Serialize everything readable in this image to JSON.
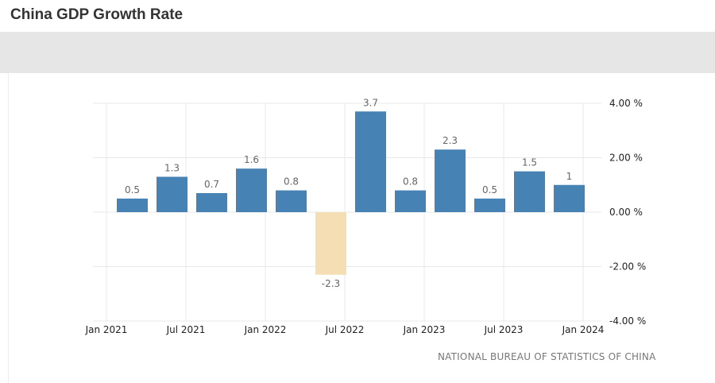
{
  "page": {
    "title": "China GDP Growth Rate"
  },
  "chart_data": {
    "type": "bar",
    "title": "China GDP Growth Rate",
    "categories": [
      "Q1 2021",
      "Q2 2021",
      "Q3 2021",
      "Q4 2021",
      "Q1 2022",
      "Q2 2022",
      "Q3 2022",
      "Q4 2022",
      "Q1 2023",
      "Q2 2023",
      "Q3 2023",
      "Q4 2023"
    ],
    "values": [
      0.5,
      1.3,
      0.7,
      1.6,
      0.8,
      -2.3,
      3.7,
      0.8,
      2.3,
      0.5,
      1.5,
      1
    ],
    "value_labels": [
      "0.5",
      "1.3",
      "0.7",
      "1.6",
      "0.8",
      "-2.3",
      "3.7",
      "0.8",
      "2.3",
      "0.5",
      "1.5",
      "1"
    ],
    "x_tick_labels": [
      "Jan 2021",
      "Jul 2021",
      "Jan 2022",
      "Jul 2022",
      "Jan 2023",
      "Jul 2023",
      "Jan 2024"
    ],
    "y_ticks": [
      4,
      2,
      0,
      -2,
      -4
    ],
    "y_tick_labels": [
      "4.00 %",
      "2.00 %",
      "0.00 %",
      "-2.00 %",
      "-4.00 %"
    ],
    "ylim": [
      -4,
      4
    ],
    "y_axis_side": "right",
    "grid": true,
    "colors": {
      "positive": "#4682b4",
      "negative": "#f5deb3",
      "grid": "#e8e8e8"
    },
    "source": "NATIONAL BUREAU OF STATISTICS OF CHINA"
  }
}
